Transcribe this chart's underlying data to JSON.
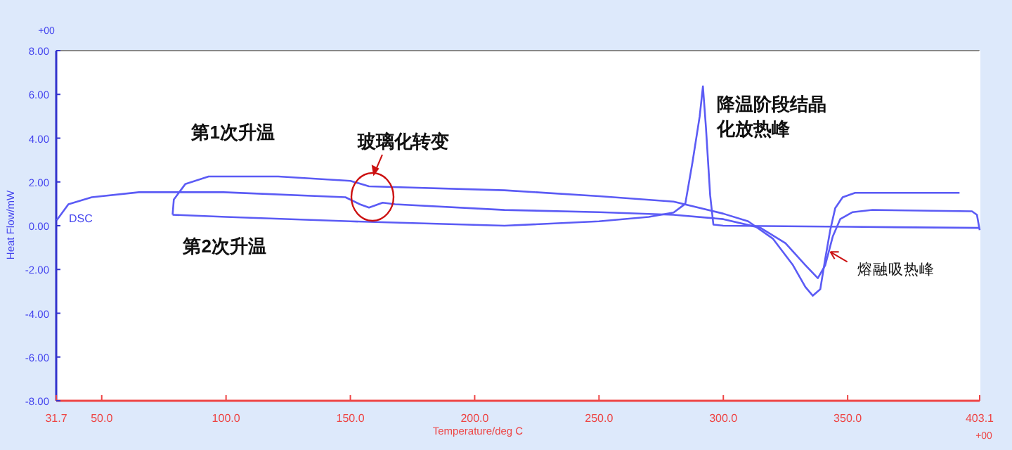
{
  "chart_data": {
    "type": "line",
    "xlabel": "Temperature/deg C",
    "ylabel": "Heat Flow/mW",
    "xlim": [
      31.7,
      403.1
    ],
    "ylim": [
      -8,
      8
    ],
    "xticks": [
      31.7,
      {
        "value": 50,
        "label": "50.0"
      },
      {
        "value": 100,
        "label": "100.0"
      },
      {
        "value": 150,
        "label": "150.0"
      },
      {
        "value": 200,
        "label": "200.0"
      },
      {
        "value": 250,
        "label": "250.0"
      },
      {
        "value": 300,
        "label": "300.0"
      },
      {
        "value": 350,
        "label": "350.0"
      },
      403.1
    ],
    "yticks": [
      {
        "value": 8,
        "label": "8.00"
      },
      {
        "value": 6,
        "label": "6.00"
      },
      {
        "value": 4,
        "label": "4.00"
      },
      {
        "value": 2,
        "label": "2.00"
      },
      {
        "value": 0,
        "label": "0.00"
      },
      {
        "value": -2,
        "label": "-2.00"
      },
      {
        "value": -4,
        "label": "-4.00"
      },
      {
        "value": -6,
        "label": "-6.00"
      },
      {
        "value": -8,
        "label": "-8.00"
      }
    ],
    "series": [
      {
        "color": "#5b5bf5",
        "x": [
          31.9,
          36.6,
          46,
          65,
          99,
          148,
          153.8,
          157.5,
          163,
          168,
          212,
          250,
          280,
          300,
          315,
          325,
          333,
          338,
          341,
          344,
          347,
          352,
          360,
          400,
          402,
          403.1
        ],
        "values": [
          0.25,
          0.98,
          1.3,
          1.53,
          1.53,
          1.3,
          0.98,
          0.83,
          1.05,
          0.98,
          0.72,
          0.62,
          0.5,
          0.3,
          -0.1,
          -0.8,
          -1.8,
          -2.4,
          -1.8,
          -0.5,
          0.3,
          0.62,
          0.72,
          0.66,
          0.5,
          -0.2
        ]
      },
      {
        "color": "#5b5bf5",
        "x": [
          403.1,
          350,
          300,
          296,
          294.7,
          293,
          291.8,
          290.5,
          287.6,
          284.7,
          280,
          270,
          250,
          212,
          150,
          100,
          78.5
        ],
        "values": [
          -0.1,
          -0.05,
          0.0,
          0.05,
          1.4,
          4.5,
          6.37,
          5.0,
          2.9,
          1.0,
          0.6,
          0.4,
          0.2,
          0.0,
          0.2,
          0.4,
          0.5
        ]
      },
      {
        "color": "#5b5bf5",
        "x": [
          78.5,
          79,
          83.6,
          93,
          121,
          150,
          157.5,
          212,
          250,
          280,
          300,
          310,
          320,
          328,
          333,
          336,
          339,
          341,
          343,
          345,
          348,
          353,
          395
        ],
        "values": [
          0.5,
          1.2,
          1.9,
          2.25,
          2.25,
          2.05,
          1.8,
          1.62,
          1.35,
          1.1,
          0.55,
          0.2,
          -0.6,
          -1.8,
          -2.8,
          -3.2,
          -2.9,
          -1.5,
          -0.2,
          0.8,
          1.3,
          1.5,
          1.5
        ]
      }
    ],
    "annotations": [
      {
        "text": "第1次升温",
        "x": 100,
        "y": 2.3
      },
      {
        "text": "第2次升温",
        "x": 100,
        "y": 0.4
      },
      "玻璃化转变",
      {
        "text": "降温阶段结晶化放热峰",
        "x": 291.8,
        "y": 6.37
      },
      {
        "text": "熔融吸热峰",
        "x": 342.5,
        "y": -1.2
      },
      "DSC",
      "+00",
      "+00"
    ]
  }
}
